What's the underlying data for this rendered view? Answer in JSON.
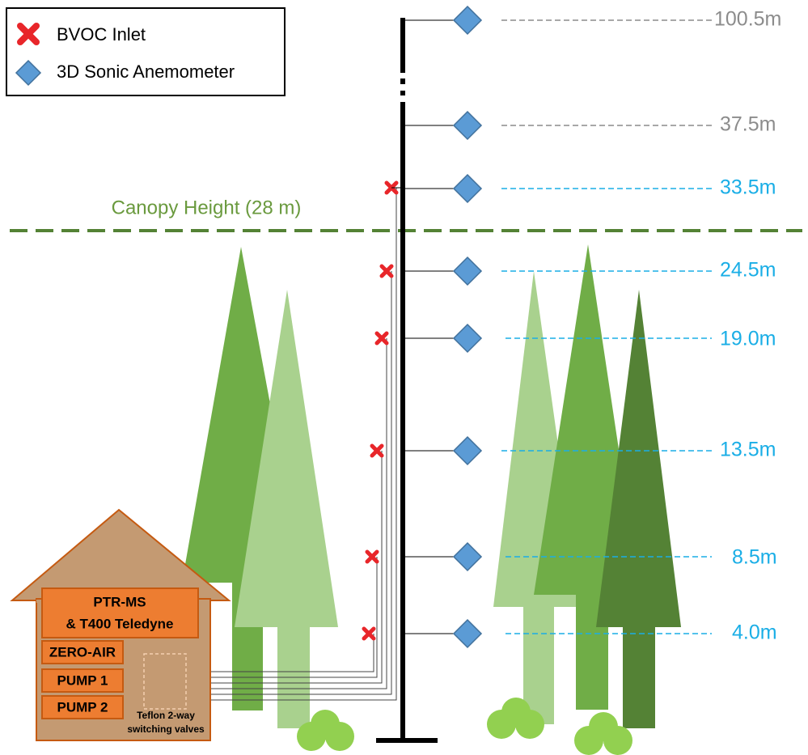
{
  "legend": {
    "items": [
      "BVOC Inlet",
      "3D Sonic Anemometer"
    ]
  },
  "canopy_label": "Canopy Height (28 m)",
  "heights": [
    "100.5m",
    "37.5m",
    "33.5m",
    "24.5m",
    "19.0m",
    "13.5m",
    "8.5m",
    "4.0m"
  ],
  "house": {
    "instrument": [
      "PTR-MS",
      "& T400 Teledyne"
    ],
    "zero_air": "ZERO-AIR",
    "pump1": "PUMP 1",
    "pump2": "PUMP 2",
    "valves": [
      "Teflon 2-way",
      "switching valves"
    ]
  }
}
